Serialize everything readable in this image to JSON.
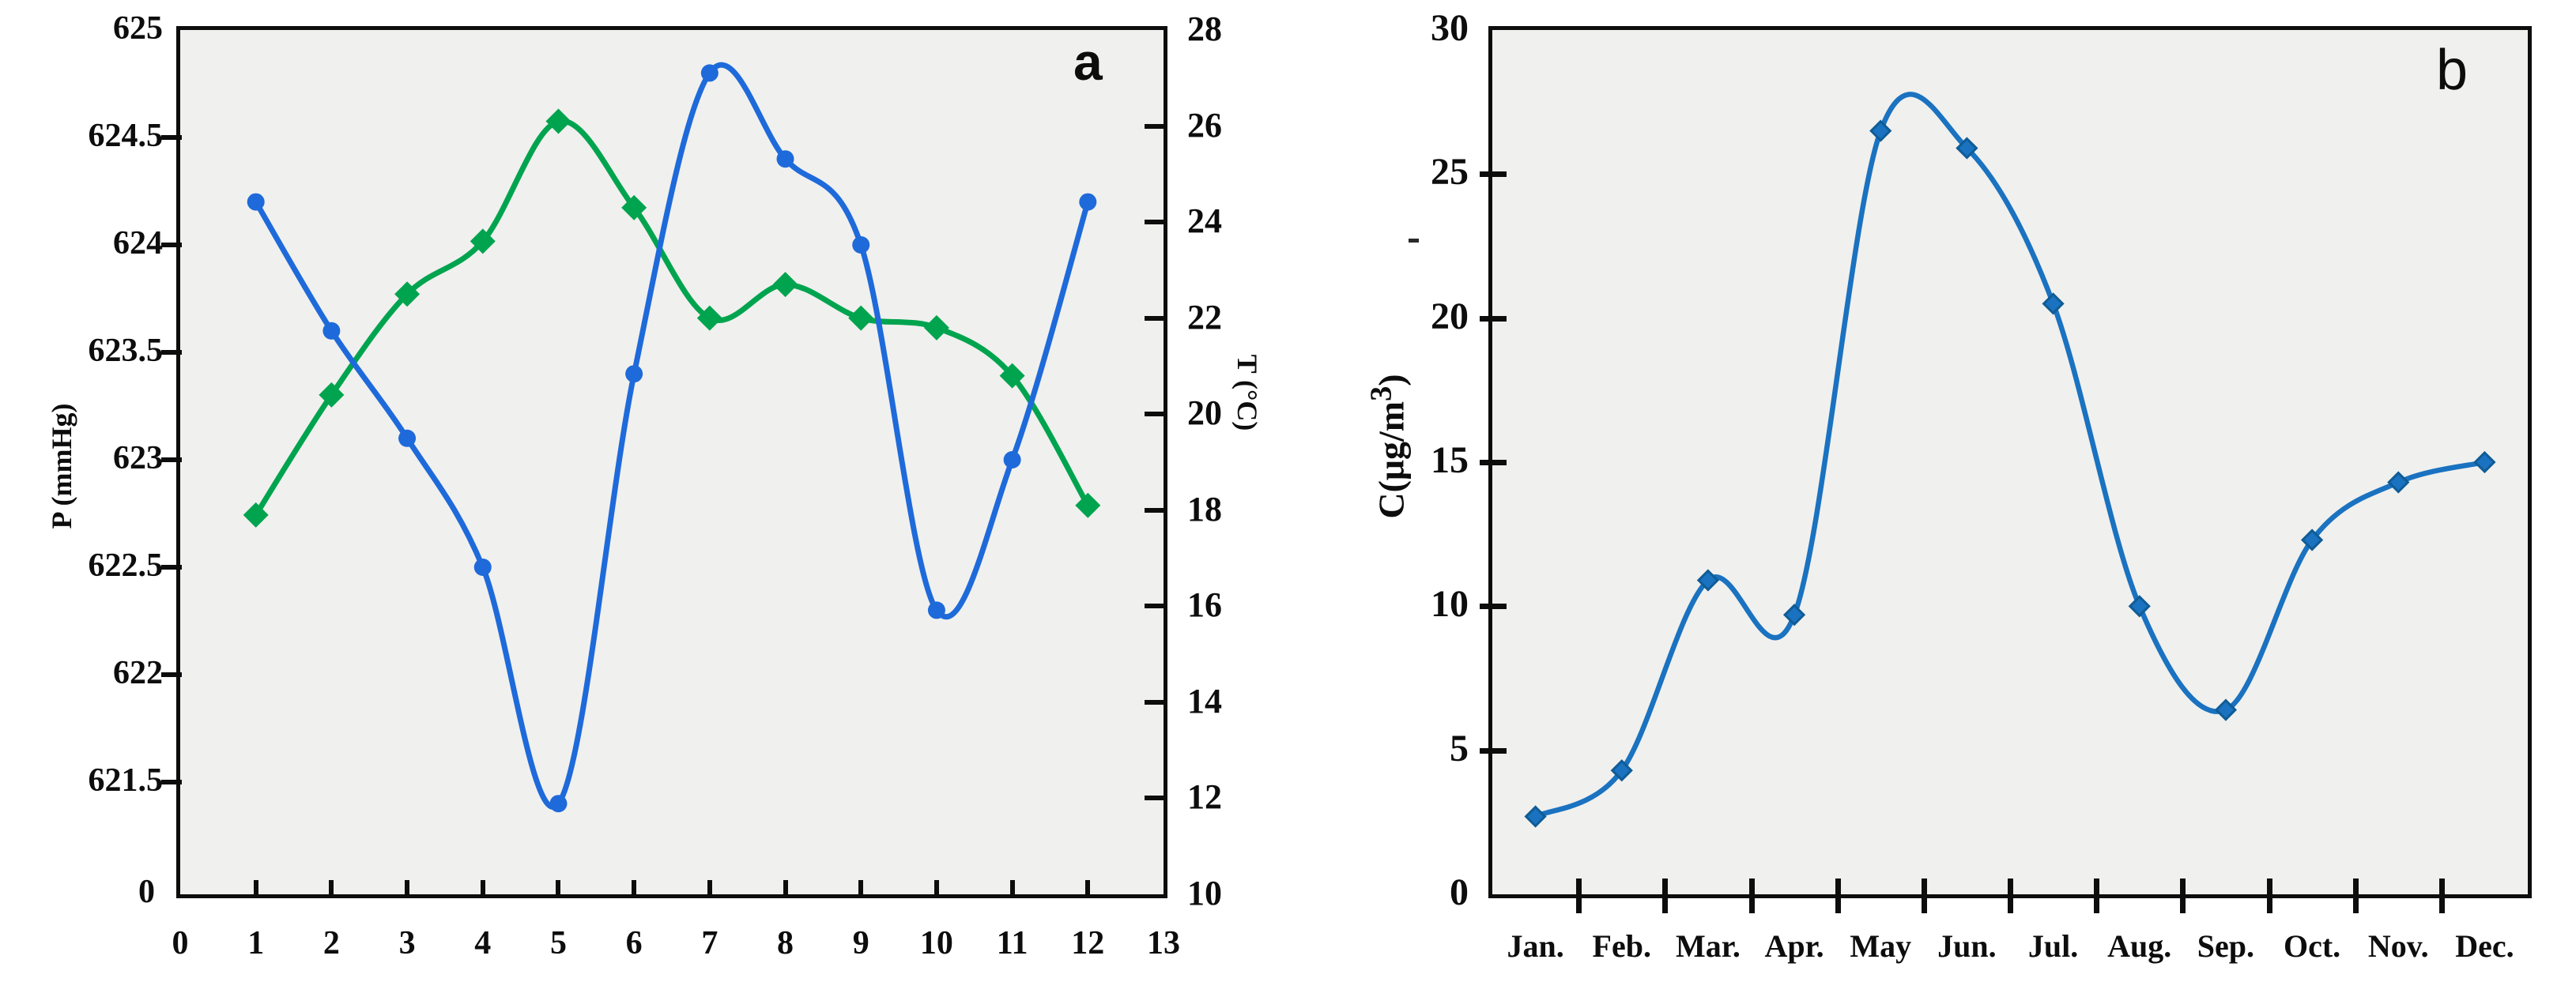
{
  "figure": {
    "background": "#ffffff",
    "plot_background": "#f0f0ee",
    "frame_color": "#0d0d0d"
  },
  "chart_data": [
    {
      "type": "line",
      "panel_label": "a",
      "x": [
        1,
        2,
        3,
        4,
        5,
        6,
        7,
        8,
        9,
        10,
        11,
        12
      ],
      "x_range": [
        0,
        13
      ],
      "x_tick_labels": [
        "0",
        "1",
        "2",
        "3",
        "4",
        "5",
        "6",
        "7",
        "8",
        "9",
        "10",
        "11",
        "12",
        "13"
      ],
      "y_left": {
        "label": "P (mmHg)",
        "tick_labels": [
          "625",
          "624.5",
          "624",
          "623.5",
          "623",
          "622.5",
          "622",
          "621.5"
        ],
        "break_label": "0",
        "top_value": 625,
        "tick_step": 0.5
      },
      "y_right": {
        "label": "T (°C)",
        "tick_labels": [
          "28",
          "26",
          "24",
          "22",
          "20",
          "18",
          "16",
          "14",
          "12",
          "10"
        ],
        "range": [
          10,
          28
        ],
        "tick_step": 2
      },
      "grid": false,
      "legend": "none",
      "series": [
        {
          "name": "pressure",
          "axis": "left",
          "color": "#1e6ada",
          "marker": "circle",
          "values": [
            624.2,
            623.6,
            623.1,
            622.5,
            621.4,
            623.4,
            624.8,
            624.4,
            624.0,
            622.3,
            623.0,
            624.2
          ]
        },
        {
          "name": "temperature",
          "axis": "right",
          "color": "#00a44f",
          "marker": "diamond",
          "values": [
            17.9,
            20.4,
            22.5,
            23.6,
            26.1,
            24.3,
            22.0,
            22.7,
            22.0,
            21.8,
            20.8,
            18.1
          ]
        }
      ]
    },
    {
      "type": "line",
      "panel_label": "b",
      "categories": [
        "Jan.",
        "Feb.",
        "Mar.",
        "Apr.",
        "May",
        "Jun.",
        "Jul.",
        "Aug.",
        "Sep.",
        "Oct.",
        "Nov.",
        "Dec."
      ],
      "ylabel_prefix": "C(μg/m",
      "ylabel_sup": "3",
      "ylabel_suffix": ")",
      "y_tick_labels": [
        "30",
        "25",
        "20",
        "15",
        "10",
        "5",
        "0"
      ],
      "ylim": [
        0,
        30
      ],
      "grid": false,
      "legend": "none",
      "series": [
        {
          "name": "concentration",
          "color": "#1a72c0",
          "marker": "diamond",
          "values": [
            2.7,
            4.3,
            10.9,
            9.7,
            26.5,
            25.9,
            20.5,
            10.0,
            6.4,
            12.3,
            14.3,
            15.0
          ]
        }
      ]
    }
  ]
}
